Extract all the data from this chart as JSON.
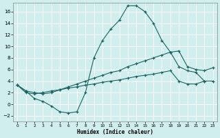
{
  "title": "",
  "xlabel": "Humidex (Indice chaleur)",
  "ylabel": "",
  "background_color": "#d0eeee",
  "grid_color": "#b8d8d8",
  "line_color": "#1a6060",
  "xlim": [
    -0.5,
    23.5
  ],
  "ylim": [
    -3,
    17.5
  ],
  "xticks": [
    0,
    1,
    2,
    3,
    4,
    5,
    6,
    7,
    8,
    9,
    10,
    11,
    12,
    13,
    14,
    15,
    16,
    17,
    18,
    19,
    20,
    21,
    22,
    23
  ],
  "yticks": [
    -2,
    0,
    2,
    4,
    6,
    8,
    10,
    12,
    14,
    16
  ],
  "line1_x": [
    0,
    1,
    2,
    3,
    4,
    5,
    6,
    7,
    8,
    9,
    10,
    11,
    12,
    13,
    14,
    15,
    16,
    17,
    18,
    19,
    20,
    21,
    22,
    23
  ],
  "line1_y": [
    3.3,
    2.3,
    1.0,
    0.5,
    -0.3,
    -1.3,
    -1.5,
    -1.3,
    2.0,
    8.0,
    11.0,
    13.0,
    14.5,
    17.0,
    17.0,
    16.0,
    14.0,
    11.0,
    9.0,
    6.5,
    5.8,
    5.5,
    4.0,
    null
  ],
  "line2_x": [
    0,
    1,
    2,
    3,
    4,
    5,
    6,
    7,
    8,
    9,
    10,
    11,
    12,
    13,
    14,
    15,
    16,
    17,
    18,
    19,
    20,
    21,
    22,
    23
  ],
  "line2_y": [
    3.3,
    2.3,
    2.0,
    1.8,
    2.0,
    2.5,
    3.0,
    3.5,
    4.0,
    4.5,
    5.0,
    5.5,
    5.8,
    6.5,
    7.0,
    7.5,
    8.0,
    8.5,
    9.0,
    9.2,
    6.5,
    6.0,
    5.8,
    6.3
  ],
  "line3_x": [
    0,
    1,
    2,
    3,
    4,
    5,
    6,
    7,
    8,
    9,
    10,
    11,
    12,
    13,
    14,
    15,
    16,
    17,
    18,
    19,
    20,
    21,
    22,
    23
  ],
  "line3_y": [
    3.3,
    2.0,
    1.8,
    2.0,
    2.3,
    2.5,
    2.8,
    3.0,
    3.3,
    3.5,
    3.8,
    4.0,
    4.2,
    4.5,
    4.8,
    5.0,
    5.2,
    5.5,
    5.8,
    4.0,
    3.5,
    3.5,
    4.0,
    4.0
  ]
}
